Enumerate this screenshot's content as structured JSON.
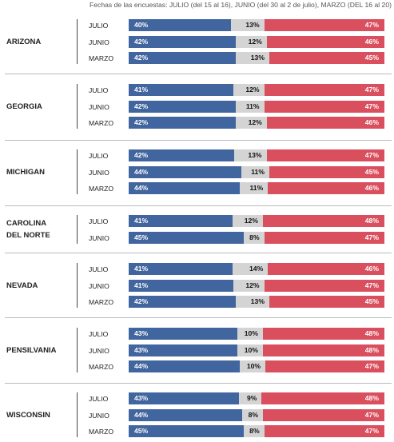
{
  "header": "Fechas de las encuestas:  JULIO (del 15 al 16), JUNIO (del 30 al 2 de julio), MARZO (DEL 16 al 20)",
  "colors": {
    "series_a": "#41659e",
    "undecided": "#d4d4d4",
    "series_c": "#d94f5e"
  },
  "chart_data": {
    "type": "bar",
    "stacked": true,
    "orientation": "horizontal",
    "value_suffix": "%",
    "groups": [
      {
        "state": [
          "ARIZONA"
        ],
        "rows": [
          {
            "label": "JULIO",
            "values": [
              40,
              13,
              47
            ]
          },
          {
            "label": "JUNIO",
            "values": [
              42,
              12,
              46
            ]
          },
          {
            "label": "MARZO",
            "values": [
              42,
              13,
              45
            ]
          }
        ]
      },
      {
        "state": [
          "GEORGIA"
        ],
        "rows": [
          {
            "label": "JULIO",
            "values": [
              41,
              12,
              47
            ]
          },
          {
            "label": "JUNIO",
            "values": [
              42,
              11,
              47
            ]
          },
          {
            "label": "MARZO",
            "values": [
              42,
              12,
              46
            ]
          }
        ]
      },
      {
        "state": [
          "MICHIGAN"
        ],
        "rows": [
          {
            "label": "JULIO",
            "values": [
              42,
              13,
              47
            ]
          },
          {
            "label": "JUNIO",
            "values": [
              44,
              11,
              45
            ]
          },
          {
            "label": "MARZO",
            "values": [
              44,
              11,
              46
            ]
          }
        ]
      },
      {
        "state": [
          "CAROLINA",
          "DEL NORTE"
        ],
        "rows": [
          {
            "label": "JULIO",
            "values": [
              41,
              12,
              48
            ]
          },
          {
            "label": "JUNIO",
            "values": [
              45,
              8,
              47
            ]
          }
        ]
      },
      {
        "state": [
          "NEVADA"
        ],
        "rows": [
          {
            "label": "JULIO",
            "values": [
              41,
              14,
              46
            ]
          },
          {
            "label": "JUNIO",
            "values": [
              41,
              12,
              47
            ]
          },
          {
            "label": "MARZO",
            "values": [
              42,
              13,
              45
            ]
          }
        ]
      },
      {
        "state": [
          "PENSILVANIA"
        ],
        "rows": [
          {
            "label": "JULIO",
            "values": [
              43,
              10,
              48
            ]
          },
          {
            "label": "JUNIO",
            "values": [
              43,
              10,
              48
            ]
          },
          {
            "label": "MARZO",
            "values": [
              44,
              10,
              47
            ]
          }
        ]
      },
      {
        "state": [
          "WISCONSIN"
        ],
        "rows": [
          {
            "label": "JULIO",
            "values": [
              43,
              9,
              48
            ]
          },
          {
            "label": "JUNIO",
            "values": [
              44,
              8,
              47
            ]
          },
          {
            "label": "MARZO",
            "values": [
              45,
              8,
              47
            ]
          }
        ]
      }
    ]
  }
}
